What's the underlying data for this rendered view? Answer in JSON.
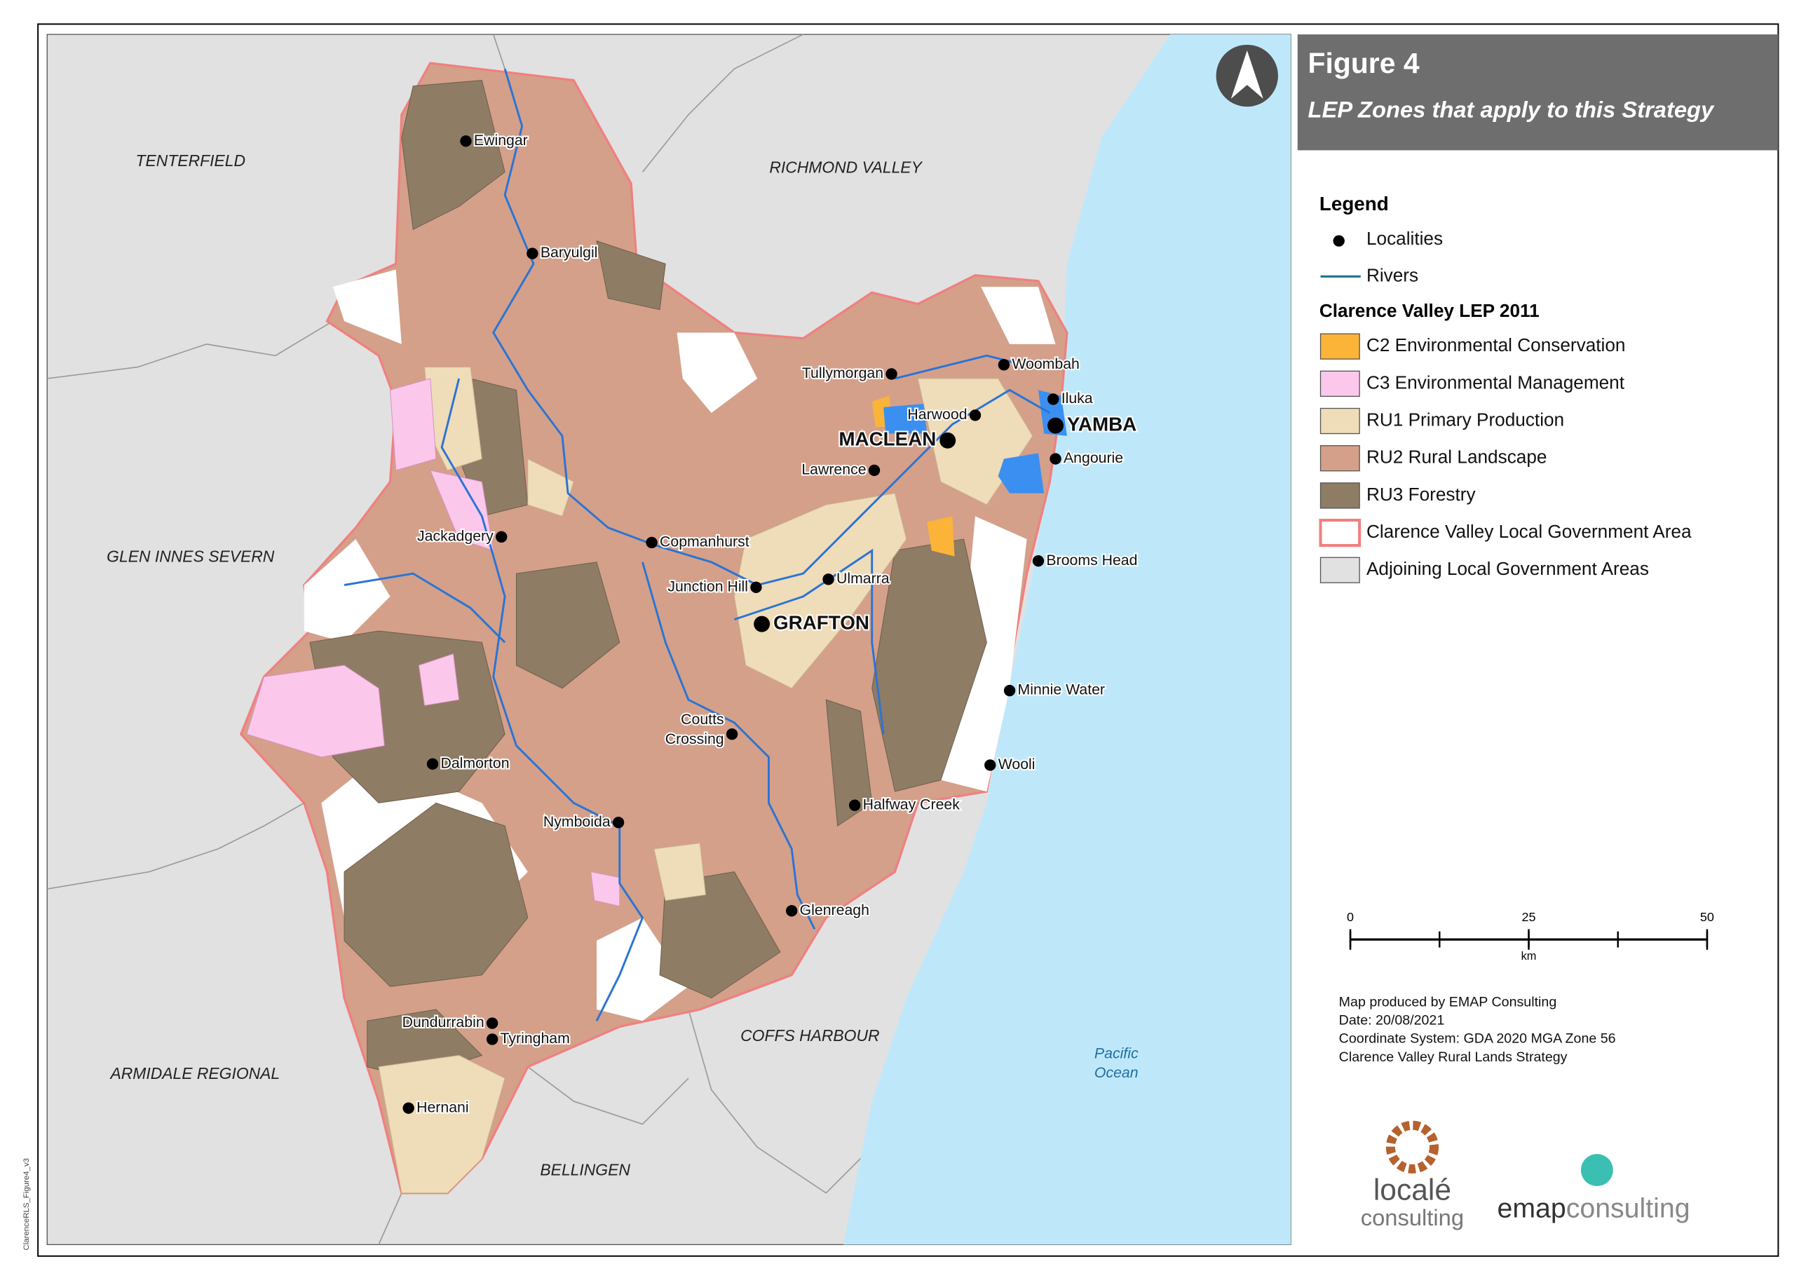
{
  "header": {
    "title": "Figure 4",
    "subtitle": "LEP Zones that apply to this Strategy"
  },
  "legend": {
    "title": "Legend",
    "localities": "Localities",
    "rivers": "Rivers",
    "lep_heading": "Clarence Valley LEP 2011",
    "items": [
      {
        "label": "C2 Environmental Conservation",
        "color": "#fbb437"
      },
      {
        "label": "C3 Environmental Management",
        "color": "#fbc8ec"
      },
      {
        "label": "RU1 Primary Production",
        "color": "#efdcb9"
      },
      {
        "label": "RU2 Rural Landscape",
        "color": "#d4a08a"
      },
      {
        "label": "RU3 Forestry",
        "color": "#8e7c64"
      },
      {
        "label": "Clarence Valley Local Government Area",
        "color": "#f08080"
      },
      {
        "label": "Adjoining Local Government Areas",
        "color": "#e1e1e1"
      }
    ]
  },
  "scale_bar": {
    "ticks": [
      0,
      25,
      50
    ],
    "unit": "km"
  },
  "map_info": [
    "Map produced by EMAP Consulting",
    "Date: 20/08/2021",
    "Coordinate System: GDA 2020 MGA Zone 56",
    "Clarence Valley Rural Lands Strategy"
  ],
  "logos": {
    "locale_1": "localé",
    "locale_2": "consulting",
    "emap_1": "emap",
    "emap_2": "consulting"
  },
  "file_name": "ClarenceRLS_Figure4_v3",
  "ocean": [
    "Pacific",
    "Ocean"
  ],
  "lga_names": [
    "TENTERFIELD",
    "RICHMOND VALLEY",
    "GLEN INNES SEVERN",
    "COFFS HARBOUR",
    "ARMIDALE REGIONAL",
    "BELLINGEN"
  ],
  "localities": [
    {
      "label": "Ewingar"
    },
    {
      "label": "Baryulgil"
    },
    {
      "label": "Tullymorgan"
    },
    {
      "label": "Woombah"
    },
    {
      "label": "Iluka"
    },
    {
      "label": "Harwood"
    },
    {
      "label": "YAMBA"
    },
    {
      "label": "MACLEAN"
    },
    {
      "label": "Lawrence"
    },
    {
      "label": "Angourie"
    },
    {
      "label": "Jackadgery"
    },
    {
      "label": "Copmanhurst"
    },
    {
      "label": "Brooms Head"
    },
    {
      "label": "Junction Hill"
    },
    {
      "label": "Ulmarra"
    },
    {
      "label": "GRAFTON"
    },
    {
      "label": "Minnie Water"
    },
    {
      "label": [
        "Coutts",
        "Crossing"
      ]
    },
    {
      "label": "Dalmorton"
    },
    {
      "label": "Wooli"
    },
    {
      "label": "Halfway Creek"
    },
    {
      "label": "Nymboida"
    },
    {
      "label": "Glenreagh"
    },
    {
      "label": "Dundurrabin"
    },
    {
      "label": "Tyringham"
    },
    {
      "label": "Hernani"
    }
  ]
}
